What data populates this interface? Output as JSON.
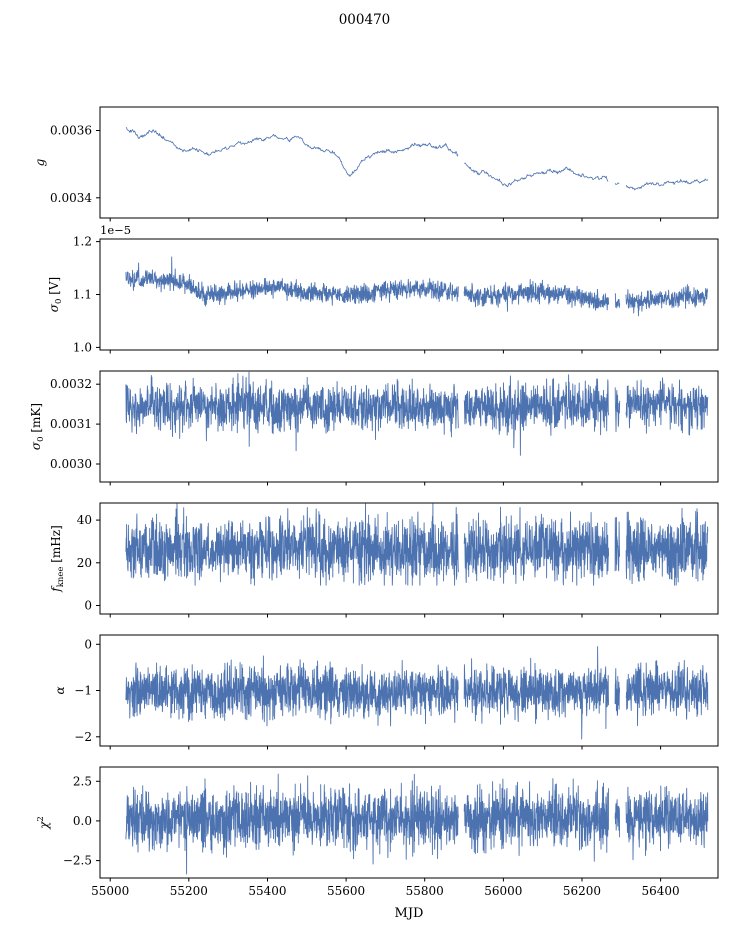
{
  "figure": {
    "title": "000470",
    "background": "#ffffff"
  },
  "chart_data": {
    "type": "line",
    "title": "000470",
    "xlabel": "MJD",
    "line_color": "#4c72b0",
    "axis_color": "#000000",
    "legend": "none",
    "grid": false,
    "xlim": [
      54974,
      56546
    ],
    "x_range": [
      55040,
      56520
    ],
    "xticks": [
      55000,
      55200,
      55400,
      55600,
      55800,
      56000,
      56200,
      56400
    ],
    "xtick_labels": [
      "55000",
      "55200",
      "55400",
      "55600",
      "55800",
      "56000",
      "56200",
      "56400"
    ],
    "data_gaps": [
      [
        55886,
        55900
      ],
      [
        56268,
        56284
      ],
      [
        56296,
        56312
      ]
    ],
    "panels": [
      {
        "name": "g",
        "ylabel_text": "g",
        "ylabel_segments": [
          {
            "text": "g",
            "style": "italic"
          }
        ],
        "ylim": [
          0.00334,
          0.00367
        ],
        "yticks": [
          0.0034,
          0.0036
        ],
        "ytick_labels": [
          "0.0034",
          "0.0036"
        ],
        "style": "walk",
        "points": 900,
        "noise": 7e-06,
        "clip": [
          0.003395,
          0.003645
        ],
        "trend": {
          "x": [
            55040,
            55110,
            55180,
            55250,
            55300,
            55360,
            55420,
            55470,
            55520,
            55570,
            55610,
            55650,
            55700,
            55760,
            55830,
            55880,
            55920,
            55960,
            56010,
            56060,
            56110,
            56160,
            56210,
            56260,
            56310,
            56360,
            56410,
            56460,
            56500,
            56520
          ],
          "y": [
            0.00361,
            0.003592,
            0.003568,
            0.00354,
            0.003556,
            0.00356,
            0.003567,
            0.003578,
            0.003552,
            0.00354,
            0.003478,
            0.003515,
            0.003534,
            0.003546,
            0.003546,
            0.003528,
            0.003468,
            0.00346,
            0.003432,
            0.00347,
            0.003482,
            0.003488,
            0.003462,
            0.003448,
            0.00342,
            0.003417,
            0.003432,
            0.003455,
            0.003452,
            0.003448
          ]
        }
      },
      {
        "name": "sigma0_V",
        "ylabel_text": "sigma_0 [V]",
        "ylabel_segments": [
          {
            "text": "σ",
            "style": "italic"
          },
          {
            "text": "0",
            "style": "sub"
          },
          {
            "text": " [V]",
            "style": "normal"
          }
        ],
        "offset_label": "1e−5",
        "ylim": [
          0.995,
          1.205
        ],
        "yticks": [
          1.0,
          1.1,
          1.2
        ],
        "ytick_labels": [
          "1.0",
          "1.1",
          "1.2"
        ],
        "style": "dense",
        "points": 2200,
        "noise": 0.011,
        "clip": [
          1.01,
          1.19
        ],
        "trend": {
          "x": [
            55040,
            55120,
            55200,
            55240,
            55280,
            55350,
            55420,
            55500,
            55560,
            55620,
            55700,
            55780,
            55860,
            55920,
            55980,
            56040,
            56100,
            56160,
            56220,
            56280,
            56340,
            56400,
            56460,
            56520
          ],
          "y": [
            1.13,
            1.127,
            1.118,
            1.1,
            1.102,
            1.108,
            1.113,
            1.105,
            1.098,
            1.097,
            1.11,
            1.112,
            1.106,
            1.097,
            1.098,
            1.103,
            1.104,
            1.098,
            1.09,
            1.083,
            1.087,
            1.092,
            1.096,
            1.095
          ]
        }
      },
      {
        "name": "sigma0_mK",
        "ylabel_text": "sigma_0 [mK]",
        "ylabel_segments": [
          {
            "text": "σ",
            "style": "italic"
          },
          {
            "text": "0",
            "style": "sub"
          },
          {
            "text": " [mK]",
            "style": "normal"
          }
        ],
        "ylim": [
          0.002955,
          0.003233
        ],
        "yticks": [
          0.003,
          0.0031,
          0.0032
        ],
        "ytick_labels": [
          "0.0030",
          "0.0031",
          "0.0032"
        ],
        "style": "dense",
        "points": 2200,
        "noise": 3.6e-05,
        "clip": [
          0.00297,
          0.00323
        ],
        "trend": {
          "x": [
            55040,
            55300,
            55600,
            55900,
            56200,
            56520
          ],
          "y": [
            0.00314,
            0.003145,
            0.003142,
            0.003142,
            0.003146,
            0.00315
          ]
        }
      },
      {
        "name": "fknee",
        "ylabel_text": "f_knee [mHz]",
        "ylabel_segments": [
          {
            "text": "f",
            "style": "italic"
          },
          {
            "text": "knee",
            "style": "sub"
          },
          {
            "text": " [mHz]",
            "style": "normal"
          }
        ],
        "ylim": [
          -4,
          48
        ],
        "yticks": [
          0,
          20,
          40
        ],
        "ytick_labels": [
          "0",
          "20",
          "40"
        ],
        "style": "dense",
        "points": 2600,
        "noise": 9,
        "clip": [
          9.5,
          47.6
        ],
        "trend": {
          "x": [
            55040,
            55400,
            55800,
            56200,
            56520
          ],
          "y": [
            26,
            27,
            26,
            26,
            26
          ]
        }
      },
      {
        "name": "alpha",
        "ylabel_text": "alpha",
        "ylabel_segments": [
          {
            "text": "α",
            "style": "italic"
          }
        ],
        "ylim": [
          -2.2,
          0.2
        ],
        "yticks": [
          -2,
          -1,
          0
        ],
        "ytick_labels": [
          "−2",
          "−1",
          "0"
        ],
        "style": "dense",
        "points": 2600,
        "noise": 0.33,
        "clip": [
          -2.05,
          -0.05
        ],
        "trend": {
          "x": [
            55040,
            56520
          ],
          "y": [
            -1.03,
            -1.02
          ]
        }
      },
      {
        "name": "chi2",
        "ylabel_text": "chi^2",
        "ylabel_segments": [
          {
            "text": "χ",
            "style": "italic"
          },
          {
            "text": "2",
            "style": "sup"
          }
        ],
        "ylim": [
          -3.6,
          3.4
        ],
        "yticks": [
          -2.5,
          0.0,
          2.5
        ],
        "ytick_labels": [
          "−2.5",
          "0.0",
          "2.5"
        ],
        "style": "dense",
        "points": 2600,
        "noise": 1.15,
        "clip": [
          -3.35,
          2.95
        ],
        "trend": {
          "x": [
            55040,
            56520
          ],
          "y": [
            0.15,
            0.15
          ]
        }
      }
    ]
  }
}
